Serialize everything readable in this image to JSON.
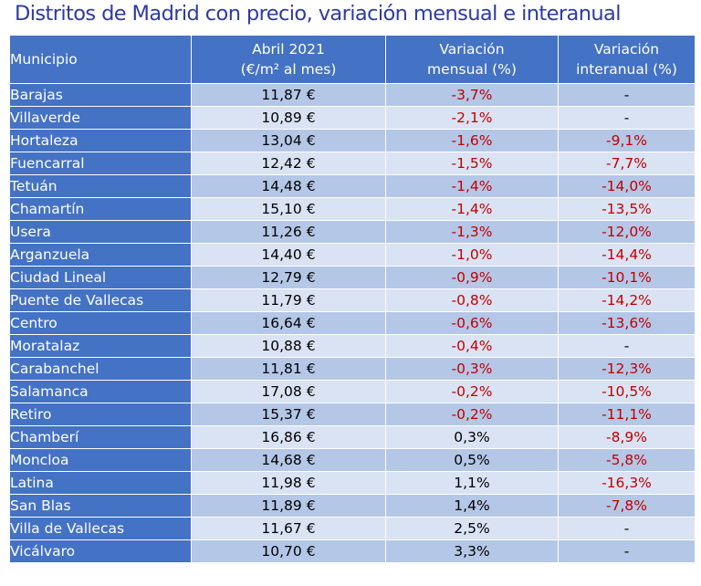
{
  "title": "Distritos de Madrid con precio, variación mensual e interanual",
  "colors": {
    "header_bg": "#4472c4",
    "row_dark": "#b4c7e7",
    "row_light": "#dae3f3",
    "negative_text": "#c00000",
    "title_text": "#2c3aa6"
  },
  "chart_data": {
    "type": "table",
    "title": "Distritos de Madrid con precio, variación mensual e interanual",
    "columns": [
      {
        "lines": [
          "Municipio"
        ]
      },
      {
        "lines": [
          "Abril 2021",
          "(€/m² al mes)"
        ]
      },
      {
        "lines": [
          "Variación",
          "mensual (%)"
        ]
      },
      {
        "lines": [
          "Variación",
          "interanual (%)"
        ]
      }
    ],
    "rows": [
      [
        "Barajas",
        "11,87 €",
        "-3,7%",
        "-"
      ],
      [
        "Villaverde",
        "10,89 €",
        "-2,1%",
        "-"
      ],
      [
        "Hortaleza",
        "13,04 €",
        "-1,6%",
        "-9,1%"
      ],
      [
        "Fuencarral",
        "12,42 €",
        "-1,5%",
        "-7,7%"
      ],
      [
        "Tetuán",
        "14,48 €",
        "-1,4%",
        "-14,0%"
      ],
      [
        "Chamartín",
        "15,10 €",
        "-1,4%",
        "-13,5%"
      ],
      [
        "Usera",
        "11,26 €",
        "-1,3%",
        "-12,0%"
      ],
      [
        "Arganzuela",
        "14,40 €",
        "-1,0%",
        "-14,4%"
      ],
      [
        "Ciudad Lineal",
        "12,79 €",
        "-0,9%",
        "-10,1%"
      ],
      [
        "Puente de Vallecas",
        "11,79 €",
        "-0,8%",
        "-14,2%"
      ],
      [
        "Centro",
        "16,64 €",
        "-0,6%",
        "-13,6%"
      ],
      [
        "Moratalaz",
        "10,88 €",
        "-0,4%",
        "-"
      ],
      [
        "Carabanchel",
        "11,81 €",
        "-0,3%",
        "-12,3%"
      ],
      [
        "Salamanca",
        "17,08 €",
        "-0,2%",
        "-10,5%"
      ],
      [
        "Retiro",
        "15,37 €",
        "-0,2%",
        "-11,1%"
      ],
      [
        "Chamberí",
        "16,86 €",
        "0,3%",
        "-8,9%"
      ],
      [
        "Moncloa",
        "14,68 €",
        "0,5%",
        "-5,8%"
      ],
      [
        "Latina",
        "11,98 €",
        "1,1%",
        "-16,3%"
      ],
      [
        "San Blas",
        "11,89 €",
        "1,4%",
        "-7,8%"
      ],
      [
        "Villa de Vallecas",
        "11,67 €",
        "2,5%",
        "-"
      ],
      [
        "Vicálvaro",
        "10,70 €",
        "3,3%",
        "-"
      ]
    ],
    "red_columns": [
      2,
      3
    ],
    "red_negative_rows_col2": 15,
    "red_cells_col3": [
      false,
      false,
      true,
      true,
      true,
      true,
      true,
      true,
      true,
      true,
      true,
      false,
      true,
      true,
      true,
      true,
      true,
      true,
      true,
      false,
      false
    ]
  }
}
